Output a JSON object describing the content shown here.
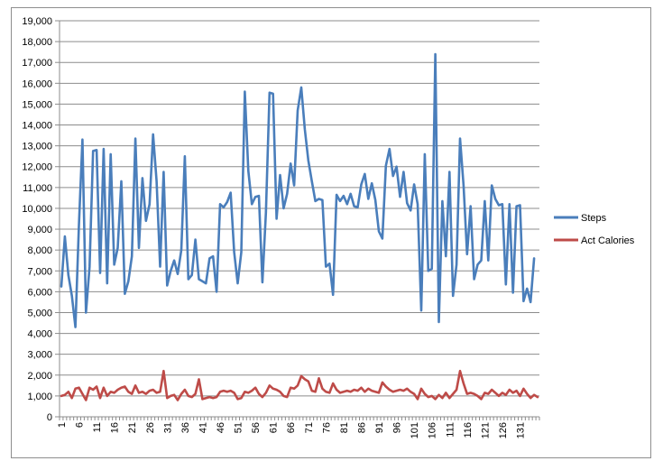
{
  "chart_data": {
    "type": "line",
    "title": "",
    "xlabel": "",
    "ylabel": "",
    "x_tick_labels": [
      "1",
      "6",
      "11",
      "16",
      "21",
      "26",
      "31",
      "36",
      "41",
      "46",
      "51",
      "56",
      "61",
      "66",
      "71",
      "76",
      "81",
      "86",
      "91",
      "96",
      "101",
      "106",
      "111",
      "116",
      "121",
      "126",
      "131"
    ],
    "y_tick_labels": [
      "0",
      "1,000",
      "2,000",
      "3,000",
      "4,000",
      "5,000",
      "6,000",
      "7,000",
      "8,000",
      "9,000",
      "10,000",
      "11,000",
      "12,000",
      "13,000",
      "14,000",
      "15,000",
      "16,000",
      "17,000",
      "18,000",
      "19,000"
    ],
    "ylim": [
      0,
      19000
    ],
    "x_range": [
      1,
      136
    ],
    "grid": true,
    "legend_position": "right",
    "series": [
      {
        "name": "Steps",
        "color": "#4a7ebb",
        "values": [
          6250,
          8650,
          6800,
          5800,
          4300,
          9200,
          13300,
          5000,
          7200,
          12750,
          12800,
          6900,
          12850,
          6400,
          12600,
          7300,
          8100,
          11300,
          5900,
          6500,
          7700,
          13350,
          8100,
          11450,
          9400,
          10200,
          13550,
          11300,
          7200,
          11750,
          6300,
          7000,
          7500,
          6850,
          8000,
          12500,
          6600,
          6800,
          8500,
          6600,
          6500,
          6400,
          7600,
          7700,
          6000,
          10200,
          10050,
          10300,
          10750,
          7900,
          6400,
          7900,
          15600,
          11800,
          10200,
          10550,
          10600,
          6450,
          9800,
          15550,
          15500,
          9500,
          11600,
          10000,
          10700,
          12150,
          11100,
          14700,
          15800,
          13800,
          12300,
          11300,
          10350,
          10450,
          10400,
          7200,
          7350,
          5850,
          10650,
          10350,
          10600,
          10200,
          10700,
          10100,
          10050,
          11150,
          11650,
          10450,
          11200,
          10400,
          8900,
          8550,
          12050,
          12850,
          11550,
          12000,
          10550,
          11750,
          10250,
          9900,
          11150,
          10200,
          5100,
          12600,
          7000,
          7100,
          17400,
          4550,
          10350,
          7700,
          11750,
          5800,
          7300,
          13350,
          11100,
          7800,
          10100,
          6600,
          7300,
          7500,
          10350,
          7500,
          11100,
          10450,
          10150,
          10200,
          6350,
          10200,
          5950,
          10100,
          10150,
          5550,
          6150,
          5500,
          7600
        ]
      },
      {
        "name": "Act Calories",
        "color": "#be4b48",
        "values": [
          1000,
          1050,
          1200,
          900,
          1350,
          1400,
          1100,
          800,
          1400,
          1300,
          1450,
          900,
          1400,
          1000,
          1200,
          1150,
          1300,
          1400,
          1450,
          1200,
          1100,
          1500,
          1150,
          1200,
          1100,
          1250,
          1300,
          1150,
          1200,
          2200,
          900,
          1000,
          1050,
          800,
          1100,
          1300,
          1000,
          950,
          1100,
          1800,
          850,
          900,
          950,
          900,
          950,
          1200,
          1250,
          1200,
          1250,
          1150,
          850,
          900,
          1200,
          1150,
          1250,
          1400,
          1100,
          950,
          1150,
          1500,
          1350,
          1300,
          1200,
          1000,
          950,
          1400,
          1350,
          1500,
          1950,
          1800,
          1700,
          1250,
          1200,
          1850,
          1350,
          1200,
          1150,
          1600,
          1300,
          1150,
          1200,
          1250,
          1200,
          1300,
          1250,
          1400,
          1200,
          1350,
          1250,
          1200,
          1150,
          1650,
          1450,
          1300,
          1200,
          1250,
          1300,
          1250,
          1350,
          1200,
          1100,
          850,
          1350,
          1100,
          950,
          1000,
          850,
          1050,
          900,
          1150,
          900,
          1100,
          1300,
          2200,
          1600,
          1100,
          1150,
          1100,
          1000,
          850,
          1150,
          1100,
          1300,
          1150,
          1000,
          1150,
          1050,
          1300,
          1150,
          1250,
          1000,
          1350,
          1100,
          900,
          1050,
          950
        ]
      }
    ]
  }
}
